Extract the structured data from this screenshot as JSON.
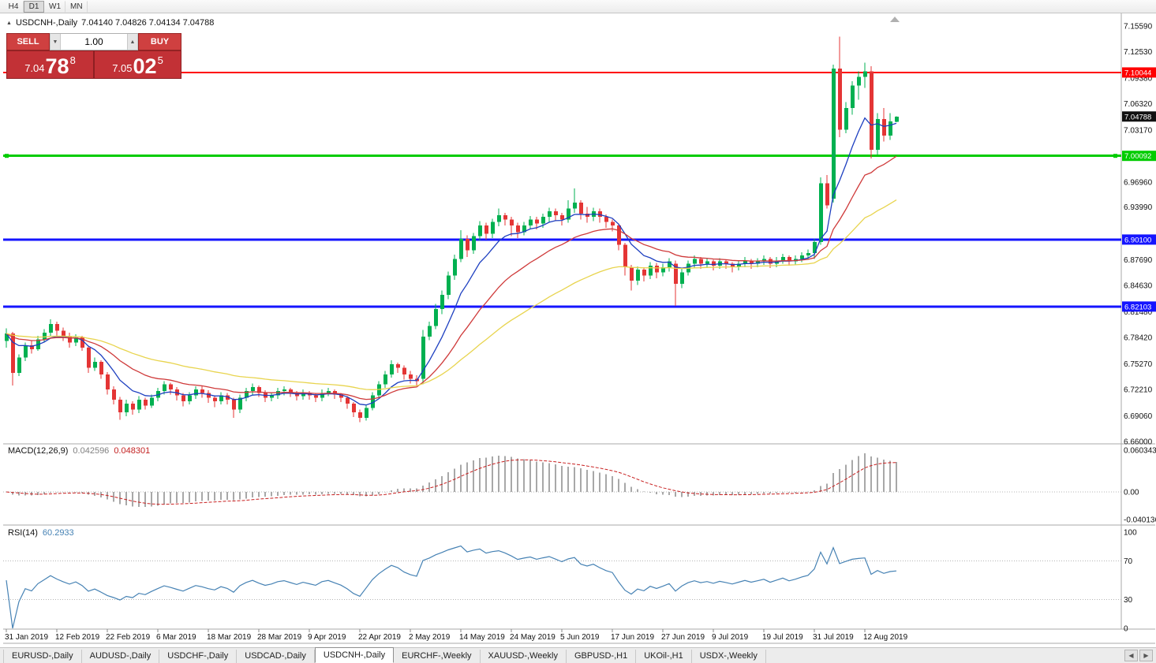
{
  "toolbar": {
    "timeframes": [
      {
        "label": "H4",
        "active": false
      },
      {
        "label": "D1",
        "active": true
      },
      {
        "label": "W1",
        "active": false
      },
      {
        "label": "MN",
        "active": false
      }
    ]
  },
  "chart": {
    "symbol_period": "USDCNH-,Daily",
    "ohlc_text": "7.04140 7.04826 7.04134 7.04788",
    "marker_icon": "▲"
  },
  "trade_panel": {
    "sell_label": "SELL",
    "buy_label": "BUY",
    "volume": "1.00",
    "volume_down_icon": "▼",
    "volume_up_icon": "▲",
    "sell_price": {
      "prefix": "7.04",
      "main": "78",
      "pip": "8"
    },
    "buy_price": {
      "prefix": "7.05",
      "main": "02",
      "pip": "5"
    }
  },
  "price_axis": {
    "labels": [
      "7.15590",
      "7.12530",
      "7.09380",
      "7.06320",
      "7.03170",
      "6.96960",
      "6.93990",
      "6.87690",
      "6.84630",
      "6.81480",
      "6.78420",
      "6.75270",
      "6.72210",
      "6.69060",
      "6.66000"
    ],
    "current_price": "7.04788"
  },
  "levels": [
    {
      "label": "7.10044",
      "value": 7.10044,
      "color": "#ff0000",
      "width": 2,
      "handles": false
    },
    {
      "label": "7.00092",
      "value": 7.00092,
      "color": "#00cc00",
      "width": 3,
      "handles": true
    },
    {
      "label": "6.90100",
      "value": 6.901,
      "color": "#1515ff",
      "width": 3,
      "handles": false
    },
    {
      "label": "6.82103",
      "value": 6.82103,
      "color": "#1515ff",
      "width": 3,
      "handles": false
    }
  ],
  "macd_panel": {
    "name": "MACD(12,26,9)",
    "value_main": "0.042596",
    "value_signal": "0.048301",
    "axis": [
      {
        "text": "0.060343",
        "value": 0.060343
      },
      {
        "text": "0.00",
        "value": 0
      },
      {
        "text": "-0.040136",
        "value": -0.040136
      }
    ]
  },
  "rsi_panel": {
    "name": "RSI(14)",
    "value": "60.2933",
    "axis": [
      {
        "text": "100",
        "value": 100
      },
      {
        "text": "70",
        "value": 70
      },
      {
        "text": "30",
        "value": 30
      },
      {
        "text": "0",
        "value": 0
      }
    ],
    "levels": [
      70,
      30
    ]
  },
  "tabs": {
    "scroll_left_icon": "◀",
    "scroll_right_icon": "▶",
    "items": [
      {
        "label": "EURUSD-,Daily",
        "active": false
      },
      {
        "label": "AUDUSD-,Daily",
        "active": false
      },
      {
        "label": "USDCHF-,Daily",
        "active": false
      },
      {
        "label": "USDCAD-,Daily",
        "active": false
      },
      {
        "label": "USDCNH-,Daily",
        "active": true
      },
      {
        "label": "EURCHF-,Weekly",
        "active": false
      },
      {
        "label": "XAUUSD-,Weekly",
        "active": false
      },
      {
        "label": "GBPUSD-,H1",
        "active": false
      },
      {
        "label": "UKOil-,H1",
        "active": false
      },
      {
        "label": "USDX-,Weekly",
        "active": false
      }
    ]
  },
  "colors": {
    "candle_up": "#00b050",
    "candle_down": "#e43535",
    "macd_hist": "#a8a8a8",
    "macd_signal": "#c82020",
    "rsi_line": "#4682b4",
    "current_badge": "#111111",
    "separator": "#aaaaaa",
    "dotted": "#b4b4b4"
  },
  "chart_data": {
    "type": "candlestick",
    "symbol": "USDCNH-",
    "timeframe": "Daily",
    "title": "USDCNH-,Daily",
    "last_ohlc": {
      "open": 7.0414,
      "high": 7.04826,
      "low": 7.04134,
      "close": 7.04788
    },
    "y_min": 6.66,
    "y_max": 7.1559,
    "moving_averages": [
      {
        "period": 8,
        "color": "#1d3fc0"
      },
      {
        "period": 20,
        "color": "#cf3a3a"
      },
      {
        "period": 45,
        "color": "#e8d44e"
      }
    ],
    "indicators": {
      "macd_params": "12,26,9",
      "rsi_params": "14"
    },
    "x_labels": [
      {
        "text": "31 Jan 2019",
        "i": 0
      },
      {
        "text": "12 Feb 2019",
        "i": 8
      },
      {
        "text": "22 Feb 2019",
        "i": 16
      },
      {
        "text": "6 Mar 2019",
        "i": 24
      },
      {
        "text": "18 Mar 2019",
        "i": 32
      },
      {
        "text": "28 Mar 2019",
        "i": 40
      },
      {
        "text": "9 Apr 2019",
        "i": 48
      },
      {
        "text": "22 Apr 2019",
        "i": 56
      },
      {
        "text": "2 May 2019",
        "i": 64
      },
      {
        "text": "14 May 2019",
        "i": 72
      },
      {
        "text": "24 May 2019",
        "i": 80
      },
      {
        "text": "5 Jun 2019",
        "i": 88
      },
      {
        "text": "17 Jun 2019",
        "i": 96
      },
      {
        "text": "27 Jun 2019",
        "i": 104
      },
      {
        "text": "9 Jul 2019",
        "i": 112
      },
      {
        "text": "19 Jul 2019",
        "i": 120
      },
      {
        "text": "31 Jul 2019",
        "i": 128
      },
      {
        "text": "12 Aug 2019",
        "i": 136
      }
    ],
    "candles": [
      [
        6.78,
        6.795,
        6.772,
        6.789
      ],
      [
        6.789,
        6.791,
        6.727,
        6.742
      ],
      [
        6.742,
        6.764,
        6.738,
        6.76
      ],
      [
        6.76,
        6.778,
        6.756,
        6.775
      ],
      [
        6.775,
        6.78,
        6.765,
        6.77
      ],
      [
        6.77,
        6.786,
        6.768,
        6.782
      ],
      [
        6.782,
        6.794,
        6.778,
        6.79
      ],
      [
        6.79,
        6.806,
        6.786,
        6.8
      ],
      [
        6.8,
        6.803,
        6.786,
        6.792
      ],
      [
        6.792,
        6.796,
        6.78,
        6.785
      ],
      [
        6.785,
        6.79,
        6.772,
        6.778
      ],
      [
        6.778,
        6.788,
        6.774,
        6.784
      ],
      [
        6.784,
        6.786,
        6.768,
        6.772
      ],
      [
        6.772,
        6.774,
        6.742,
        6.748
      ],
      [
        6.748,
        6.76,
        6.744,
        6.755
      ],
      [
        6.755,
        6.757,
        6.735,
        6.74
      ],
      [
        6.74,
        6.743,
        6.716,
        6.722
      ],
      [
        6.722,
        6.726,
        6.704,
        6.71
      ],
      [
        6.71,
        6.713,
        6.686,
        6.695
      ],
      [
        6.695,
        6.71,
        6.69,
        6.705
      ],
      [
        6.705,
        6.708,
        6.692,
        6.698
      ],
      [
        6.698,
        6.714,
        6.694,
        6.71
      ],
      [
        6.71,
        6.712,
        6.698,
        6.703
      ],
      [
        6.703,
        6.716,
        6.7,
        6.712
      ],
      [
        6.712,
        6.724,
        6.708,
        6.72
      ],
      [
        6.72,
        6.732,
        6.716,
        6.728
      ],
      [
        6.728,
        6.73,
        6.716,
        6.722
      ],
      [
        6.722,
        6.725,
        6.709,
        6.715
      ],
      [
        6.715,
        6.718,
        6.702,
        6.708
      ],
      [
        6.708,
        6.719,
        6.704,
        6.715
      ],
      [
        6.715,
        6.726,
        6.711,
        6.722
      ],
      [
        6.722,
        6.726,
        6.712,
        6.718
      ],
      [
        6.718,
        6.721,
        6.706,
        6.712
      ],
      [
        6.712,
        6.715,
        6.701,
        6.708
      ],
      [
        6.708,
        6.719,
        6.704,
        6.715
      ],
      [
        6.715,
        6.718,
        6.704,
        6.71
      ],
      [
        6.71,
        6.712,
        6.688,
        6.698
      ],
      [
        6.698,
        6.716,
        6.694,
        6.712
      ],
      [
        6.712,
        6.724,
        6.708,
        6.72
      ],
      [
        6.72,
        6.729,
        6.715,
        6.725
      ],
      [
        6.725,
        6.727,
        6.713,
        6.718
      ],
      [
        6.718,
        6.721,
        6.707,
        6.712
      ],
      [
        6.712,
        6.719,
        6.708,
        6.715
      ],
      [
        6.715,
        6.724,
        6.711,
        6.72
      ],
      [
        6.72,
        6.726,
        6.715,
        6.722
      ],
      [
        6.722,
        6.724,
        6.713,
        6.718
      ],
      [
        6.718,
        6.72,
        6.709,
        6.714
      ],
      [
        6.714,
        6.722,
        6.71,
        6.718
      ],
      [
        6.718,
        6.72,
        6.71,
        6.715
      ],
      [
        6.715,
        6.717,
        6.707,
        6.712
      ],
      [
        6.712,
        6.722,
        6.708,
        6.718
      ],
      [
        6.718,
        6.724,
        6.714,
        6.72
      ],
      [
        6.72,
        6.722,
        6.711,
        6.716
      ],
      [
        6.716,
        6.718,
        6.707,
        6.712
      ],
      [
        6.712,
        6.714,
        6.699,
        6.705
      ],
      [
        6.705,
        6.707,
        6.689,
        6.695
      ],
      [
        6.695,
        6.698,
        6.683,
        6.688
      ],
      [
        6.688,
        6.704,
        6.685,
        6.7
      ],
      [
        6.7,
        6.719,
        6.697,
        6.715
      ],
      [
        6.715,
        6.732,
        6.712,
        6.728
      ],
      [
        6.728,
        6.744,
        6.724,
        6.74
      ],
      [
        6.74,
        6.757,
        6.736,
        6.752
      ],
      [
        6.752,
        6.754,
        6.742,
        6.748
      ],
      [
        6.748,
        6.751,
        6.734,
        6.74
      ],
      [
        6.74,
        6.744,
        6.729,
        6.735
      ],
      [
        6.735,
        6.739,
        6.726,
        6.732
      ],
      [
        6.735,
        6.793,
        6.728,
        6.785
      ],
      [
        6.785,
        6.803,
        6.781,
        6.798
      ],
      [
        6.798,
        6.824,
        6.794,
        6.818
      ],
      [
        6.818,
        6.84,
        6.812,
        6.835
      ],
      [
        6.835,
        6.863,
        6.83,
        6.858
      ],
      [
        6.858,
        6.883,
        6.853,
        6.878
      ],
      [
        6.878,
        6.912,
        6.874,
        6.902
      ],
      [
        6.902,
        6.906,
        6.88,
        6.888
      ],
      [
        6.888,
        6.909,
        6.884,
        6.905
      ],
      [
        6.905,
        6.923,
        6.9,
        6.918
      ],
      [
        6.918,
        6.921,
        6.901,
        6.908
      ],
      [
        6.908,
        6.926,
        6.903,
        6.922
      ],
      [
        6.922,
        6.938,
        6.917,
        6.93
      ],
      [
        6.93,
        6.933,
        6.918,
        6.925
      ],
      [
        6.925,
        6.928,
        6.905,
        6.918
      ],
      [
        6.918,
        6.921,
        6.903,
        6.91
      ],
      [
        6.91,
        6.922,
        6.906,
        6.918
      ],
      [
        6.918,
        6.929,
        6.913,
        6.925
      ],
      [
        6.925,
        6.928,
        6.913,
        6.92
      ],
      [
        6.92,
        6.932,
        6.915,
        6.928
      ],
      [
        6.928,
        6.939,
        6.922,
        6.935
      ],
      [
        6.935,
        6.938,
        6.923,
        6.93
      ],
      [
        6.93,
        6.933,
        6.918,
        6.925
      ],
      [
        6.925,
        6.948,
        6.921,
        6.938
      ],
      [
        6.938,
        6.962,
        6.933,
        6.945
      ],
      [
        6.945,
        6.948,
        6.925,
        6.932
      ],
      [
        6.932,
        6.94,
        6.921,
        6.928
      ],
      [
        6.928,
        6.939,
        6.923,
        6.935
      ],
      [
        6.935,
        6.938,
        6.921,
        6.928
      ],
      [
        6.928,
        6.931,
        6.915,
        6.922
      ],
      [
        6.922,
        6.925,
        6.911,
        6.918
      ],
      [
        6.918,
        6.92,
        6.888,
        6.895
      ],
      [
        6.895,
        6.897,
        6.858,
        6.868
      ],
      [
        6.868,
        6.871,
        6.84,
        6.852
      ],
      [
        6.852,
        6.869,
        6.847,
        6.865
      ],
      [
        6.865,
        6.868,
        6.851,
        6.858
      ],
      [
        6.858,
        6.874,
        6.854,
        6.87
      ],
      [
        6.87,
        6.873,
        6.855,
        6.862
      ],
      [
        6.862,
        6.872,
        6.857,
        6.868
      ],
      [
        6.868,
        6.879,
        6.863,
        6.875
      ],
      [
        6.872,
        6.876,
        6.822,
        6.848
      ],
      [
        6.848,
        6.866,
        6.843,
        6.862
      ],
      [
        6.862,
        6.876,
        6.858,
        6.872
      ],
      [
        6.872,
        6.882,
        6.867,
        6.878
      ],
      [
        6.878,
        6.88,
        6.866,
        6.872
      ],
      [
        6.872,
        6.879,
        6.867,
        6.875
      ],
      [
        6.875,
        6.877,
        6.864,
        6.87
      ],
      [
        6.87,
        6.879,
        6.866,
        6.875
      ],
      [
        6.875,
        6.877,
        6.866,
        6.872
      ],
      [
        6.872,
        6.874,
        6.862,
        6.868
      ],
      [
        6.868,
        6.876,
        6.864,
        6.872
      ],
      [
        6.872,
        6.88,
        6.868,
        6.876
      ],
      [
        6.876,
        6.878,
        6.866,
        6.872
      ],
      [
        6.872,
        6.879,
        6.868,
        6.875
      ],
      [
        6.875,
        6.882,
        6.871,
        6.878
      ],
      [
        6.878,
        6.88,
        6.867,
        6.872
      ],
      [
        6.872,
        6.88,
        6.868,
        6.876
      ],
      [
        6.876,
        6.884,
        6.872,
        6.88
      ],
      [
        6.88,
        6.882,
        6.87,
        6.875
      ],
      [
        6.875,
        6.882,
        6.871,
        6.878
      ],
      [
        6.878,
        6.886,
        6.874,
        6.882
      ],
      [
        6.882,
        6.889,
        6.878,
        6.885
      ],
      [
        6.885,
        6.902,
        6.878,
        6.898
      ],
      [
        6.898,
        6.975,
        6.895,
        6.968
      ],
      [
        6.968,
        6.978,
        6.938,
        6.942
      ],
      [
        6.95,
        7.11,
        6.945,
        7.105
      ],
      [
        7.105,
        7.143,
        7.023,
        7.032
      ],
      [
        7.032,
        7.065,
        7.028,
        7.058
      ],
      [
        7.058,
        7.09,
        7.05,
        7.085
      ],
      [
        7.085,
        7.102,
        7.068,
        7.095
      ],
      [
        7.095,
        7.112,
        7.082,
        7.102
      ],
      [
        7.102,
        7.108,
        6.998,
        7.008
      ],
      [
        7.008,
        7.052,
        7.002,
        7.045
      ],
      [
        7.045,
        7.058,
        7.018,
        7.025
      ],
      [
        7.025,
        7.052,
        7.02,
        7.042
      ],
      [
        7.0414,
        7.0483,
        7.0413,
        7.0479
      ]
    ]
  }
}
